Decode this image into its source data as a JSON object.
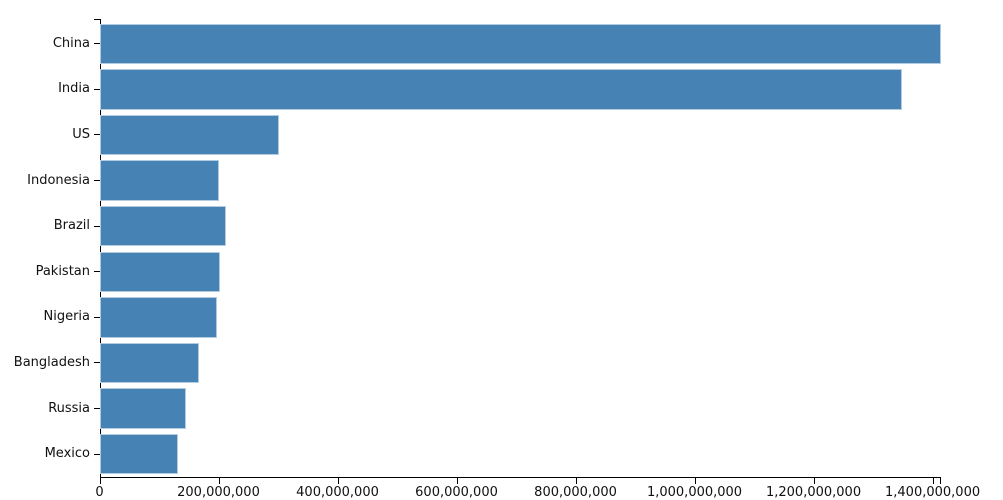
{
  "chart_data": {
    "type": "bar",
    "orientation": "horizontal",
    "title": "",
    "xlabel": "",
    "ylabel": "",
    "categories": [
      "China",
      "India",
      "US",
      "Indonesia",
      "Brazil",
      "Pakistan",
      "Nigeria",
      "Bangladesh",
      "Russia",
      "Mexico"
    ],
    "values": [
      1413000000,
      1348000000,
      300000000,
      200000000,
      212000000,
      201000000,
      197000000,
      166000000,
      145000000,
      131000000
    ],
    "xlim": [
      0,
      1413000000
    ],
    "x_tick_interval": 200000000,
    "x_tick_values": [
      0,
      200000000,
      400000000,
      600000000,
      800000000,
      1000000000,
      1200000000,
      1400000000
    ],
    "x_tick_labels": [
      "0",
      "200,000,000",
      "400,000,000",
      "600,000,000",
      "800,000,000",
      "1,000,000,000",
      "1,200,000,000",
      "1,400,000,000"
    ],
    "grid": false,
    "legend_position": "none",
    "bar_color": "#4682b4",
    "bar_edge_color": "#b3cbe0",
    "axis_color": "#000000",
    "text_color": "#111111",
    "background_color": "#ffffff"
  }
}
